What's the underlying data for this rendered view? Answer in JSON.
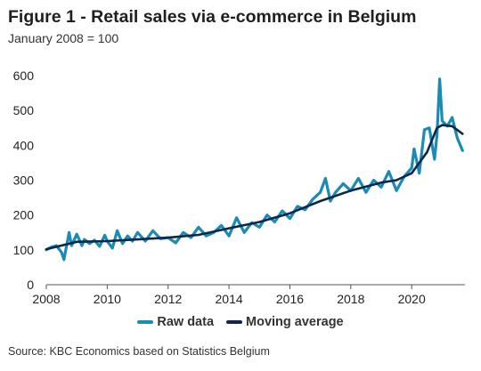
{
  "title": "Figure 1 - Retail sales via e-commerce in Belgium",
  "subtitle": "January 2008 = 100",
  "source": "Source: KBC Economics based on Statistics Belgium",
  "colors": {
    "raw": "#1a8bb5",
    "ma": "#0d2748",
    "axis": "#555555"
  },
  "chart_data": {
    "type": "line",
    "title": "Figure 1 - Retail sales via e-commerce in Belgium",
    "subtitle": "January 2008 = 100",
    "xlabel": "",
    "ylabel": "",
    "xlim": [
      2008,
      2021.75
    ],
    "ylim": [
      0,
      600
    ],
    "grid": false,
    "legend_position": "bottom",
    "x_ticks": [
      "2008",
      "2010",
      "2012",
      "2014",
      "2016",
      "2018",
      "2020"
    ],
    "y_ticks": [
      "0",
      "100",
      "200",
      "300",
      "400",
      "500",
      "600"
    ],
    "series": [
      {
        "name": "Raw data",
        "x": [
          2008.0,
          2008.17,
          2008.33,
          2008.5,
          2008.58,
          2008.75,
          2008.83,
          2009.0,
          2009.17,
          2009.25,
          2009.42,
          2009.58,
          2009.75,
          2009.92,
          2010.0,
          2010.17,
          2010.33,
          2010.5,
          2010.67,
          2010.83,
          2011.0,
          2011.25,
          2011.5,
          2011.75,
          2012.0,
          2012.25,
          2012.5,
          2012.75,
          2013.0,
          2013.25,
          2013.5,
          2013.75,
          2014.0,
          2014.25,
          2014.5,
          2014.75,
          2015.0,
          2015.25,
          2015.5,
          2015.75,
          2016.0,
          2016.25,
          2016.5,
          2016.75,
          2017.0,
          2017.17,
          2017.33,
          2017.5,
          2017.75,
          2018.0,
          2018.25,
          2018.5,
          2018.75,
          2019.0,
          2019.25,
          2019.5,
          2019.75,
          2020.0,
          2020.08,
          2020.25,
          2020.42,
          2020.58,
          2020.75,
          2020.83,
          2020.92,
          2021.0,
          2021.17,
          2021.33,
          2021.5,
          2021.67
        ],
        "values": [
          100,
          108,
          112,
          93,
          72,
          150,
          112,
          145,
          112,
          130,
          118,
          128,
          110,
          142,
          125,
          105,
          155,
          118,
          140,
          125,
          150,
          125,
          155,
          132,
          135,
          120,
          150,
          135,
          165,
          140,
          150,
          170,
          140,
          192,
          150,
          178,
          165,
          200,
          180,
          212,
          190,
          225,
          215,
          245,
          265,
          305,
          240,
          265,
          290,
          270,
          305,
          265,
          300,
          280,
          325,
          270,
          310,
          335,
          390,
          320,
          445,
          450,
          360,
          430,
          590,
          470,
          455,
          480,
          420,
          385
        ]
      },
      {
        "name": "Moving average",
        "x": [
          2008.0,
          2009.0,
          2010.0,
          2011.0,
          2012.0,
          2013.0,
          2014.0,
          2015.0,
          2016.0,
          2017.0,
          2018.0,
          2019.0,
          2019.5,
          2020.0,
          2020.5,
          2020.83,
          2021.0,
          2021.33,
          2021.67
        ],
        "values": [
          102,
          123,
          125,
          130,
          135,
          143,
          162,
          180,
          205,
          240,
          270,
          293,
          300,
          320,
          380,
          450,
          458,
          455,
          433
        ]
      }
    ]
  }
}
